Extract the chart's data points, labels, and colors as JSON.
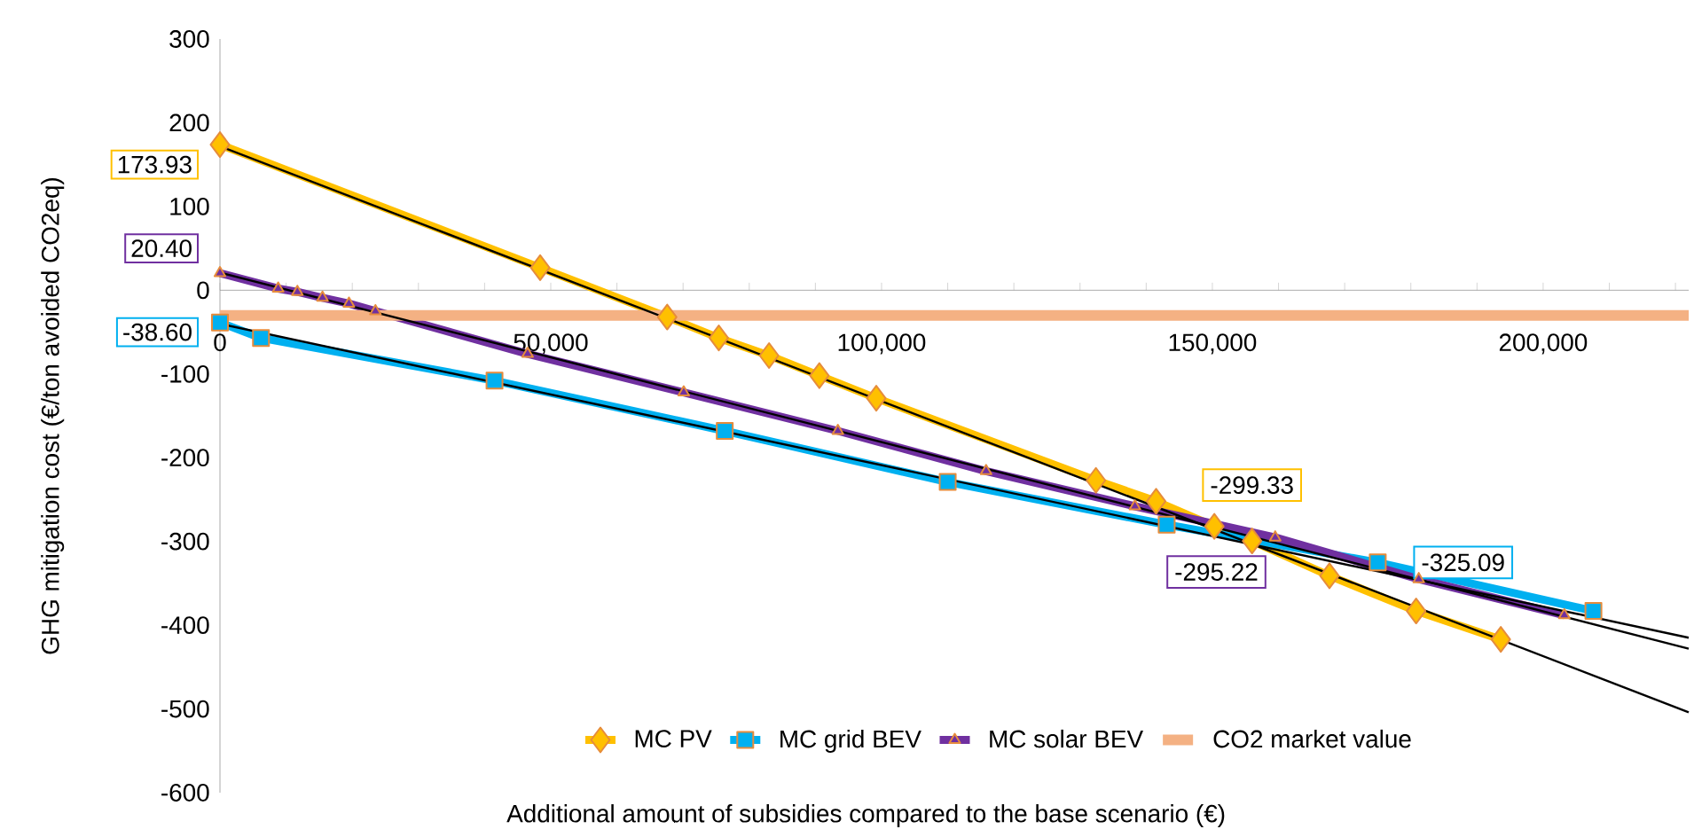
{
  "chart_data": {
    "type": "line",
    "xlabel": "Additional amount of subsidies compared to the base scenario (€)",
    "ylabel": "GHG mitigation cost (€/ton avoided CO2eq)",
    "xlim": [
      0,
      222000
    ],
    "ylim": [
      -600,
      300
    ],
    "xticks": [
      0,
      {
        "value": 10000,
        "label": null
      },
      {
        "value": 20000,
        "label": null
      },
      {
        "value": 30000,
        "label": null
      },
      {
        "value": 40000,
        "label": null
      },
      {
        "value": 50000,
        "label": "50,000"
      },
      {
        "value": 60000,
        "label": null
      },
      {
        "value": 70000,
        "label": null
      },
      {
        "value": 80000,
        "label": null
      },
      {
        "value": 90000,
        "label": null
      },
      {
        "value": 100000,
        "label": "100,000"
      },
      {
        "value": 110000,
        "label": null
      },
      {
        "value": 120000,
        "label": null
      },
      {
        "value": 130000,
        "label": null
      },
      {
        "value": 140000,
        "label": null
      },
      {
        "value": 150000,
        "label": "150,000"
      },
      {
        "value": 160000,
        "label": null
      },
      {
        "value": 170000,
        "label": null
      },
      {
        "value": 180000,
        "label": null
      },
      {
        "value": 190000,
        "label": null
      },
      {
        "value": 200000,
        "label": "200,000"
      },
      {
        "value": 210000,
        "label": null
      },
      {
        "value": 220000,
        "label": null
      }
    ],
    "yticks": [
      -600,
      -500,
      -400,
      -300,
      -200,
      -100,
      0,
      100,
      200,
      300
    ],
    "legend": "bottom",
    "grid": false,
    "series": [
      {
        "name": "MC PV",
        "color": "#ffc000",
        "marker": "diamond",
        "x": [
          0,
          48400,
          67600,
          75400,
          83000,
          90600,
          99200,
          132400,
          141500,
          150300,
          156000,
          167700,
          180800,
          193600
        ],
        "values": [
          173.93,
          27,
          -32,
          -57,
          -78,
          -102,
          -129,
          -227,
          -252,
          -282,
          -299.33,
          -341,
          -383,
          -417
        ],
        "value_labels": [
          "173.93",
          null,
          null,
          null,
          null,
          null,
          null,
          null,
          null,
          null,
          "-299.33",
          null,
          null,
          null
        ]
      },
      {
        "name": "MC grid BEV",
        "color": "#00b0f0",
        "marker": "square",
        "x": [
          0,
          6200,
          41500,
          76300,
          110000,
          143100,
          175000,
          207600
        ],
        "values": [
          -38.6,
          -57,
          -108,
          -168,
          -229,
          -280,
          -325.09,
          -383
        ],
        "value_labels": [
          "-38.60",
          null,
          null,
          null,
          null,
          null,
          "-325.09",
          null
        ]
      },
      {
        "name": "MC solar BEV",
        "color": "#7030a0",
        "marker": "triangle",
        "x": [
          0,
          8800,
          11700,
          15500,
          19500,
          23500,
          46500,
          70100,
          93400,
          115800,
          138300,
          159500,
          181200,
          203200
        ],
        "values": [
          20.4,
          2,
          -2,
          -9,
          -16,
          -25,
          -76,
          -122,
          -168,
          -216,
          -258,
          -295.22,
          -345,
          -388
        ],
        "value_labels": [
          "20.40",
          null,
          null,
          null,
          null,
          null,
          null,
          null,
          null,
          null,
          null,
          "-295.22",
          null,
          null
        ]
      },
      {
        "name": "CO2 market value",
        "color": "#f4b183",
        "marker": "none",
        "x": [
          0,
          222000
        ],
        "values": [
          -30,
          -30
        ]
      },
      {
        "type": "line",
        "color": "#000000",
        "marker": "none",
        "x": [
          0,
          222000
        ],
        "values": [
          172,
          -504
        ]
      },
      {
        "type": "line",
        "color": "#000000",
        "marker": "none",
        "x": [
          0,
          222000
        ],
        "values": [
          -40,
          -415
        ]
      },
      {
        "type": "line",
        "color": "#000000",
        "marker": "none",
        "x": [
          0,
          222000
        ],
        "values": [
          21,
          -428
        ]
      }
    ]
  }
}
